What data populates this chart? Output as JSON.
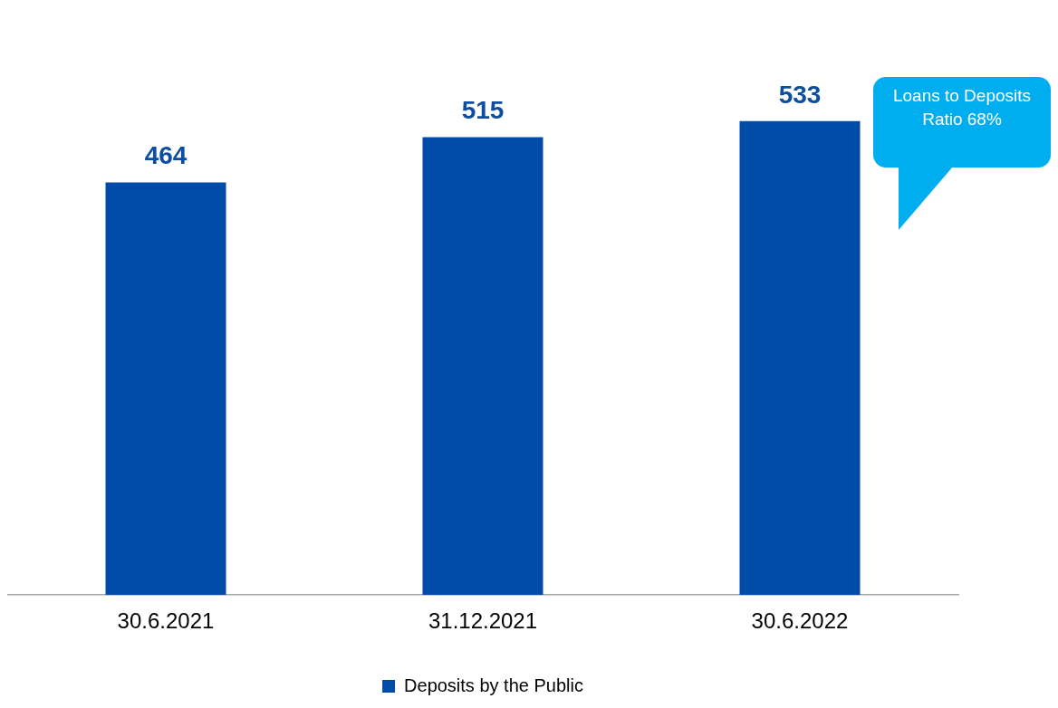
{
  "chart_data": {
    "type": "bar",
    "categories": [
      "30.6.2021",
      "31.12.2021",
      "30.6.2022"
    ],
    "series": [
      {
        "name": "Deposits by the Public",
        "color": "#004ba8",
        "values": [
          464,
          515,
          533
        ]
      }
    ],
    "data_labels": true,
    "grid": false,
    "legend": "bottom",
    "tick_labels": "x",
    "annotations": [
      "Loans to Deposits Ratio 68%"
    ]
  }
}
